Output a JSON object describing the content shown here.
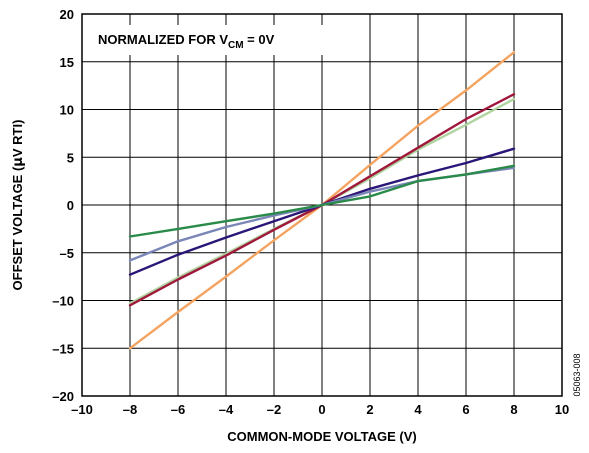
{
  "chart_data": {
    "type": "line",
    "xlabel": "COMMON-MODE VOLTAGE (V)",
    "ylabel_prefix": "OFFSET VOLTAGE (",
    "ylabel_mu": "µ",
    "ylabel_suffix": "V RTI)",
    "xlim": [
      -10,
      10
    ],
    "ylim": [
      -20,
      20
    ],
    "x_ticks": [
      -10,
      -8,
      -6,
      -4,
      -2,
      0,
      2,
      4,
      6,
      8,
      10
    ],
    "x_tick_labels": [
      "–10",
      "–8",
      "–6",
      "–4",
      "–2",
      "0",
      "2",
      "4",
      "6",
      "8",
      "10"
    ],
    "y_ticks": [
      20,
      15,
      10,
      5,
      0,
      -5,
      -10,
      -15,
      -20
    ],
    "y_tick_labels": [
      "20",
      "15",
      "10",
      "5",
      "0",
      "–5",
      "–10",
      "–15",
      "–20"
    ],
    "grid": true,
    "annotation": {
      "prefix": "NORMALIZED FOR V",
      "subscript": "CM",
      "suffix": " = 0V"
    },
    "figure_id": "05063-008",
    "series": [
      {
        "color": "#f4a460",
        "x": [
          -8,
          -6,
          -4,
          -2,
          0,
          2,
          4,
          6,
          8
        ],
        "y": [
          -15.0,
          -11.2,
          -7.5,
          -3.7,
          0,
          4.2,
          8.3,
          12.0,
          16.0
        ]
      },
      {
        "color": "#b0d4a0",
        "x": [
          -8,
          -6,
          -4,
          -2,
          0,
          2,
          4,
          6,
          8
        ],
        "y": [
          -10.3,
          -7.6,
          -5.1,
          -2.5,
          0,
          2.8,
          5.8,
          8.4,
          11.1
        ]
      },
      {
        "color": "#a0183c",
        "x": [
          -8,
          -6,
          -4,
          -2,
          0,
          2,
          4,
          6,
          8
        ],
        "y": [
          -10.5,
          -7.8,
          -5.3,
          -2.6,
          0,
          3.0,
          6.0,
          9.0,
          11.6
        ]
      },
      {
        "color": "#2a1678",
        "x": [
          -8,
          -6,
          -4,
          -2,
          0,
          2,
          4,
          6,
          8
        ],
        "y": [
          -7.3,
          -5.2,
          -3.4,
          -1.7,
          0,
          1.7,
          3.1,
          4.4,
          5.9
        ]
      },
      {
        "color": "#7a86b8",
        "x": [
          -8,
          -6,
          -4,
          -2,
          0,
          2,
          4,
          6,
          8
        ],
        "y": [
          -5.8,
          -3.8,
          -2.3,
          -1.1,
          0,
          1.4,
          2.5,
          3.2,
          3.9
        ]
      },
      {
        "color": "#2a8a4a",
        "x": [
          -8,
          -6,
          -4,
          -2,
          0,
          2,
          4,
          6,
          8
        ],
        "y": [
          -3.3,
          -2.5,
          -1.7,
          -0.9,
          0,
          0.9,
          2.5,
          3.2,
          4.1
        ]
      }
    ]
  }
}
